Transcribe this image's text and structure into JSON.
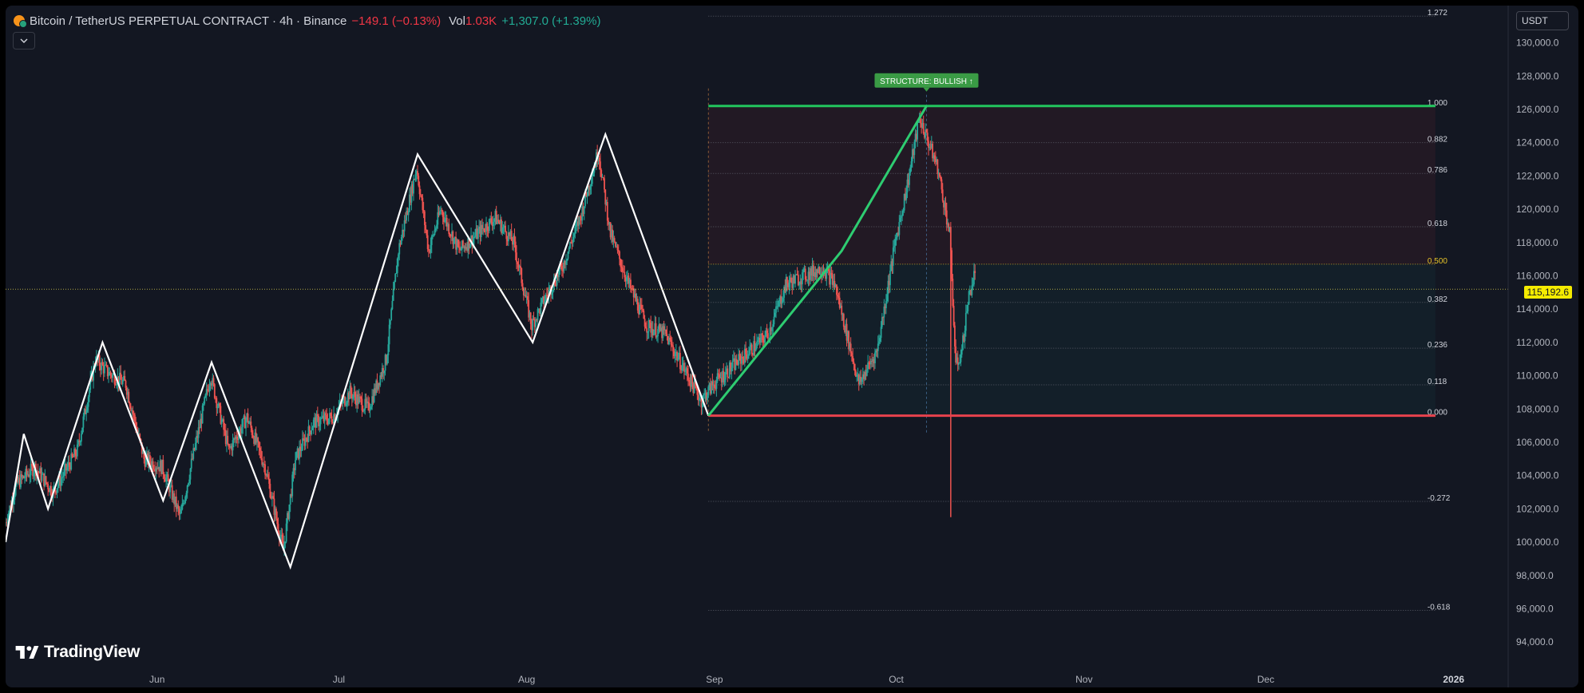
{
  "header": {
    "symbol": "Bitcoin / TetherUS PERPETUAL CONTRACT · 4h · Binance",
    "change": "−149.1 (−0.13%)",
    "vol_label": "Vol",
    "vol_value": "1.03K",
    "vol_change": "+1,307.0 (+1.39%)"
  },
  "currency_button": "USDT",
  "collapse_icon": "chevron-down-icon",
  "logo_text": "TradingView",
  "last_price": "115,192.6",
  "chart_data": {
    "type": "candlestick",
    "y_axis": {
      "range": [
        93000,
        133000
      ],
      "ticks": [
        94000,
        96000,
        98000,
        100000,
        102000,
        104000,
        106000,
        108000,
        110000,
        112000,
        114000,
        116000,
        118000,
        120000,
        122000,
        124000,
        126000,
        128000,
        130000
      ],
      "tick_labels": [
        "94,000.0",
        "96,000.0",
        "98,000.0",
        "100,000.0",
        "102,000.0",
        "104,000.0",
        "106,000.0",
        "108,000.0",
        "110,000.0",
        "112,000.0",
        "114,000.0",
        "116,000.0",
        "118,000.0",
        "120,000.0",
        "122,000.0",
        "124,000.0",
        "126,000.0",
        "128,000.0",
        "130,000.0"
      ]
    },
    "x_axis": {
      "range": [
        "2025-05-07",
        "2026-01-10"
      ],
      "ticks": [
        {
          "date": "2025-06-01",
          "label": "Jun"
        },
        {
          "date": "2025-07-01",
          "label": "Jul"
        },
        {
          "date": "2025-08-01",
          "label": "Aug"
        },
        {
          "date": "2025-09-01",
          "label": "Sep"
        },
        {
          "date": "2025-10-01",
          "label": "Oct"
        },
        {
          "date": "2025-11-01",
          "label": "Nov"
        },
        {
          "date": "2025-12-01",
          "label": "Dec"
        },
        {
          "date": "2026-01-01",
          "label": "2026"
        }
      ]
    },
    "price_path": [
      [
        "2025-05-07",
        101000
      ],
      [
        "2025-05-09",
        103500
      ],
      [
        "2025-05-12",
        104500
      ],
      [
        "2025-05-15",
        103000
      ],
      [
        "2025-05-19",
        105500
      ],
      [
        "2025-05-22",
        111000
      ],
      [
        "2025-05-24",
        110200
      ],
      [
        "2025-05-27",
        109500
      ],
      [
        "2025-05-30",
        105000
      ],
      [
        "2025-06-02",
        104500
      ],
      [
        "2025-06-05",
        101500
      ],
      [
        "2025-06-07",
        105000
      ],
      [
        "2025-06-10",
        110000
      ],
      [
        "2025-06-13",
        105500
      ],
      [
        "2025-06-16",
        107500
      ],
      [
        "2025-06-19",
        104500
      ],
      [
        "2025-06-22",
        99500
      ],
      [
        "2025-06-24",
        105000
      ],
      [
        "2025-06-27",
        107200
      ],
      [
        "2025-06-30",
        107500
      ],
      [
        "2025-07-03",
        109000
      ],
      [
        "2025-07-06",
        108000
      ],
      [
        "2025-07-09",
        111000
      ],
      [
        "2025-07-11",
        117500
      ],
      [
        "2025-07-14",
        122500
      ],
      [
        "2025-07-16",
        117500
      ],
      [
        "2025-07-18",
        120000
      ],
      [
        "2025-07-21",
        117500
      ],
      [
        "2025-07-24",
        118500
      ],
      [
        "2025-07-27",
        119500
      ],
      [
        "2025-07-30",
        118000
      ],
      [
        "2025-08-02",
        113000
      ],
      [
        "2025-08-04",
        114500
      ],
      [
        "2025-08-07",
        116500
      ],
      [
        "2025-08-10",
        119500
      ],
      [
        "2025-08-13",
        123500
      ],
      [
        "2025-08-15",
        118500
      ],
      [
        "2025-08-18",
        115500
      ],
      [
        "2025-08-21",
        113000
      ],
      [
        "2025-08-24",
        112500
      ],
      [
        "2025-08-27",
        110500
      ],
      [
        "2025-08-30",
        108500
      ],
      [
        "2025-09-01",
        109500
      ],
      [
        "2025-09-04",
        110500
      ],
      [
        "2025-09-07",
        111500
      ],
      [
        "2025-09-10",
        112500
      ],
      [
        "2025-09-13",
        115500
      ],
      [
        "2025-09-16",
        116000
      ],
      [
        "2025-09-19",
        116500
      ],
      [
        "2025-09-21",
        115500
      ],
      [
        "2025-09-23",
        112500
      ],
      [
        "2025-09-25",
        109500
      ],
      [
        "2025-09-28",
        111500
      ],
      [
        "2025-10-01",
        118000
      ],
      [
        "2025-10-03",
        121500
      ],
      [
        "2025-10-05",
        125500
      ],
      [
        "2025-10-06",
        124500
      ],
      [
        "2025-10-08",
        122500
      ],
      [
        "2025-10-10",
        118500
      ],
      [
        "2025-10-11",
        110500
      ],
      [
        "2025-10-12",
        111500
      ],
      [
        "2025-10-13",
        114500
      ],
      [
        "2025-10-14",
        116000
      ]
    ],
    "zigzag": [
      [
        "2025-05-07",
        100000
      ],
      [
        "2025-05-10",
        106500
      ],
      [
        "2025-05-14",
        102000
      ],
      [
        "2025-05-23",
        112000
      ],
      [
        "2025-06-02",
        102500
      ],
      [
        "2025-06-10",
        110800
      ],
      [
        "2025-06-23",
        98500
      ],
      [
        "2025-07-14",
        123300
      ],
      [
        "2025-08-02",
        112000
      ],
      [
        "2025-08-14",
        124500
      ],
      [
        "2025-08-31",
        107600
      ]
    ],
    "structure_line": [
      [
        "2025-08-31",
        107600
      ],
      [
        "2025-09-22",
        117500
      ],
      [
        "2025-10-06",
        126200
      ]
    ],
    "structure_label": "STRUCTURE: BULLISH ↑",
    "fib_levels": [
      {
        "label": "1.272",
        "price": 131600
      },
      {
        "label": "1.000",
        "price": 126200
      },
      {
        "label": "0.882",
        "price": 124000
      },
      {
        "label": "0.786",
        "price": 122150
      },
      {
        "label": "0.618",
        "price": 118950
      },
      {
        "label": "0.500",
        "price": 116700
      },
      {
        "label": "0.382",
        "price": 114400
      },
      {
        "label": "0.236",
        "price": 111650
      },
      {
        "label": "0.118",
        "price": 109450
      },
      {
        "label": "0.000",
        "price": 107600
      },
      {
        "label": "-0.272",
        "price": 102450
      },
      {
        "label": "-0.618",
        "price": 95900
      }
    ],
    "fib_range": [
      "2025-08-31",
      "2025-12-29"
    ],
    "wick_low": [
      "2025-10-10",
      101500
    ],
    "current_price": 115192.6,
    "colors": {
      "up": "#26a69a",
      "down": "#ef5350",
      "zigzag": "#ffffff",
      "structure": "#2ecc71",
      "fib_top": "#22c55e",
      "fib_bottom": "#e8424d",
      "half_level": "#e6c229",
      "label_bg": "#3a9b45"
    }
  }
}
